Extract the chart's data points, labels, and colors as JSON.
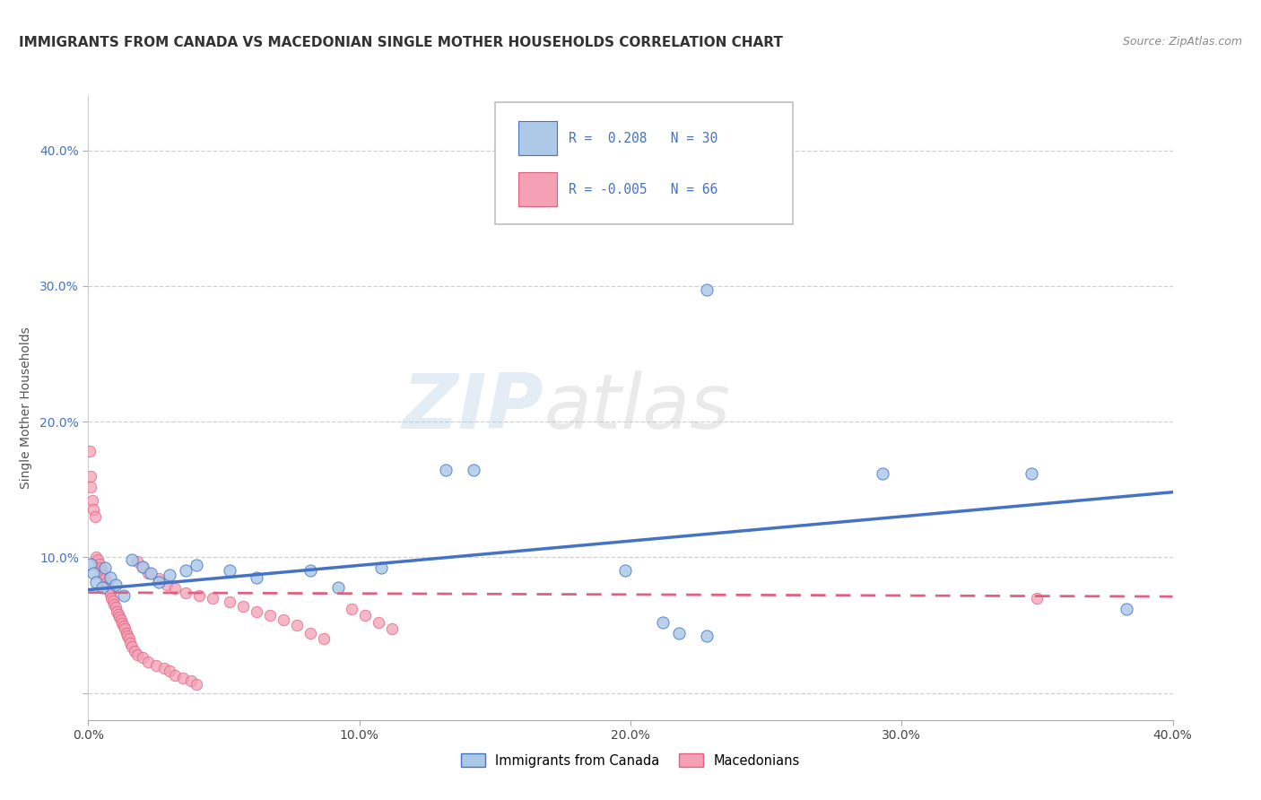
{
  "title": "IMMIGRANTS FROM CANADA VS MACEDONIAN SINGLE MOTHER HOUSEHOLDS CORRELATION CHART",
  "source": "Source: ZipAtlas.com",
  "ylabel": "Single Mother Households",
  "xlim": [
    0.0,
    0.4
  ],
  "ylim": [
    -0.02,
    0.44
  ],
  "yticks": [
    0.0,
    0.1,
    0.2,
    0.3,
    0.4
  ],
  "xticks": [
    0.0,
    0.1,
    0.2,
    0.3,
    0.4
  ],
  "xtick_labels": [
    "0.0%",
    "10.0%",
    "20.0%",
    "30.0%",
    "40.0%"
  ],
  "ytick_labels": [
    "",
    "10.0%",
    "20.0%",
    "30.0%",
    "40.0%"
  ],
  "watermark_zip": "ZIP",
  "watermark_atlas": "atlas",
  "color_blue": "#adc9e8",
  "color_pink": "#f4a0b5",
  "line_blue": "#4472c4",
  "line_pink": "#e06080",
  "blue_scatter": [
    [
      0.001,
      0.095
    ],
    [
      0.002,
      0.088
    ],
    [
      0.003,
      0.082
    ],
    [
      0.005,
      0.078
    ],
    [
      0.006,
      0.092
    ],
    [
      0.008,
      0.085
    ],
    [
      0.01,
      0.08
    ],
    [
      0.013,
      0.072
    ],
    [
      0.016,
      0.098
    ],
    [
      0.02,
      0.093
    ],
    [
      0.023,
      0.088
    ],
    [
      0.026,
      0.082
    ],
    [
      0.03,
      0.087
    ],
    [
      0.036,
      0.09
    ],
    [
      0.04,
      0.094
    ],
    [
      0.052,
      0.09
    ],
    [
      0.062,
      0.085
    ],
    [
      0.082,
      0.09
    ],
    [
      0.092,
      0.078
    ],
    [
      0.108,
      0.092
    ],
    [
      0.132,
      0.164
    ],
    [
      0.142,
      0.164
    ],
    [
      0.198,
      0.09
    ],
    [
      0.212,
      0.052
    ],
    [
      0.218,
      0.044
    ],
    [
      0.228,
      0.042
    ],
    [
      0.293,
      0.162
    ],
    [
      0.348,
      0.162
    ],
    [
      0.383,
      0.062
    ],
    [
      0.228,
      0.297
    ]
  ],
  "pink_scatter": [
    [
      0.0004,
      0.178
    ],
    [
      0.0008,
      0.16
    ],
    [
      0.001,
      0.152
    ],
    [
      0.0015,
      0.142
    ],
    [
      0.002,
      0.135
    ],
    [
      0.0025,
      0.13
    ],
    [
      0.003,
      0.1
    ],
    [
      0.0035,
      0.098
    ],
    [
      0.004,
      0.095
    ],
    [
      0.0045,
      0.092
    ],
    [
      0.005,
      0.09
    ],
    [
      0.0055,
      0.087
    ],
    [
      0.006,
      0.084
    ],
    [
      0.0065,
      0.081
    ],
    [
      0.007,
      0.079
    ],
    [
      0.0075,
      0.076
    ],
    [
      0.008,
      0.073
    ],
    [
      0.0085,
      0.07
    ],
    [
      0.009,
      0.068
    ],
    [
      0.0095,
      0.065
    ],
    [
      0.01,
      0.063
    ],
    [
      0.0105,
      0.06
    ],
    [
      0.011,
      0.058
    ],
    [
      0.0115,
      0.056
    ],
    [
      0.012,
      0.054
    ],
    [
      0.0125,
      0.051
    ],
    [
      0.013,
      0.049
    ],
    [
      0.0135,
      0.047
    ],
    [
      0.014,
      0.044
    ],
    [
      0.0145,
      0.042
    ],
    [
      0.015,
      0.04
    ],
    [
      0.0155,
      0.037
    ],
    [
      0.016,
      0.034
    ],
    [
      0.017,
      0.031
    ],
    [
      0.018,
      0.028
    ],
    [
      0.02,
      0.026
    ],
    [
      0.022,
      0.023
    ],
    [
      0.025,
      0.02
    ],
    [
      0.028,
      0.018
    ],
    [
      0.03,
      0.016
    ],
    [
      0.032,
      0.013
    ],
    [
      0.035,
      0.011
    ],
    [
      0.038,
      0.009
    ],
    [
      0.04,
      0.006
    ],
    [
      0.018,
      0.097
    ],
    [
      0.02,
      0.093
    ],
    [
      0.022,
      0.088
    ],
    [
      0.026,
      0.084
    ],
    [
      0.029,
      0.08
    ],
    [
      0.032,
      0.077
    ],
    [
      0.036,
      0.074
    ],
    [
      0.041,
      0.072
    ],
    [
      0.046,
      0.07
    ],
    [
      0.052,
      0.067
    ],
    [
      0.057,
      0.064
    ],
    [
      0.062,
      0.06
    ],
    [
      0.067,
      0.057
    ],
    [
      0.072,
      0.054
    ],
    [
      0.077,
      0.05
    ],
    [
      0.082,
      0.044
    ],
    [
      0.087,
      0.04
    ],
    [
      0.35,
      0.07
    ],
    [
      0.097,
      0.062
    ],
    [
      0.102,
      0.057
    ],
    [
      0.107,
      0.052
    ],
    [
      0.112,
      0.047
    ]
  ],
  "blue_trendline": [
    [
      0.0,
      0.076
    ],
    [
      0.4,
      0.148
    ]
  ],
  "pink_trendline": [
    [
      0.0,
      0.074
    ],
    [
      0.4,
      0.071
    ]
  ],
  "grid_color": "#cccccc",
  "background_color": "#ffffff",
  "title_fontsize": 11,
  "axis_label_fontsize": 10,
  "tick_fontsize": 10
}
